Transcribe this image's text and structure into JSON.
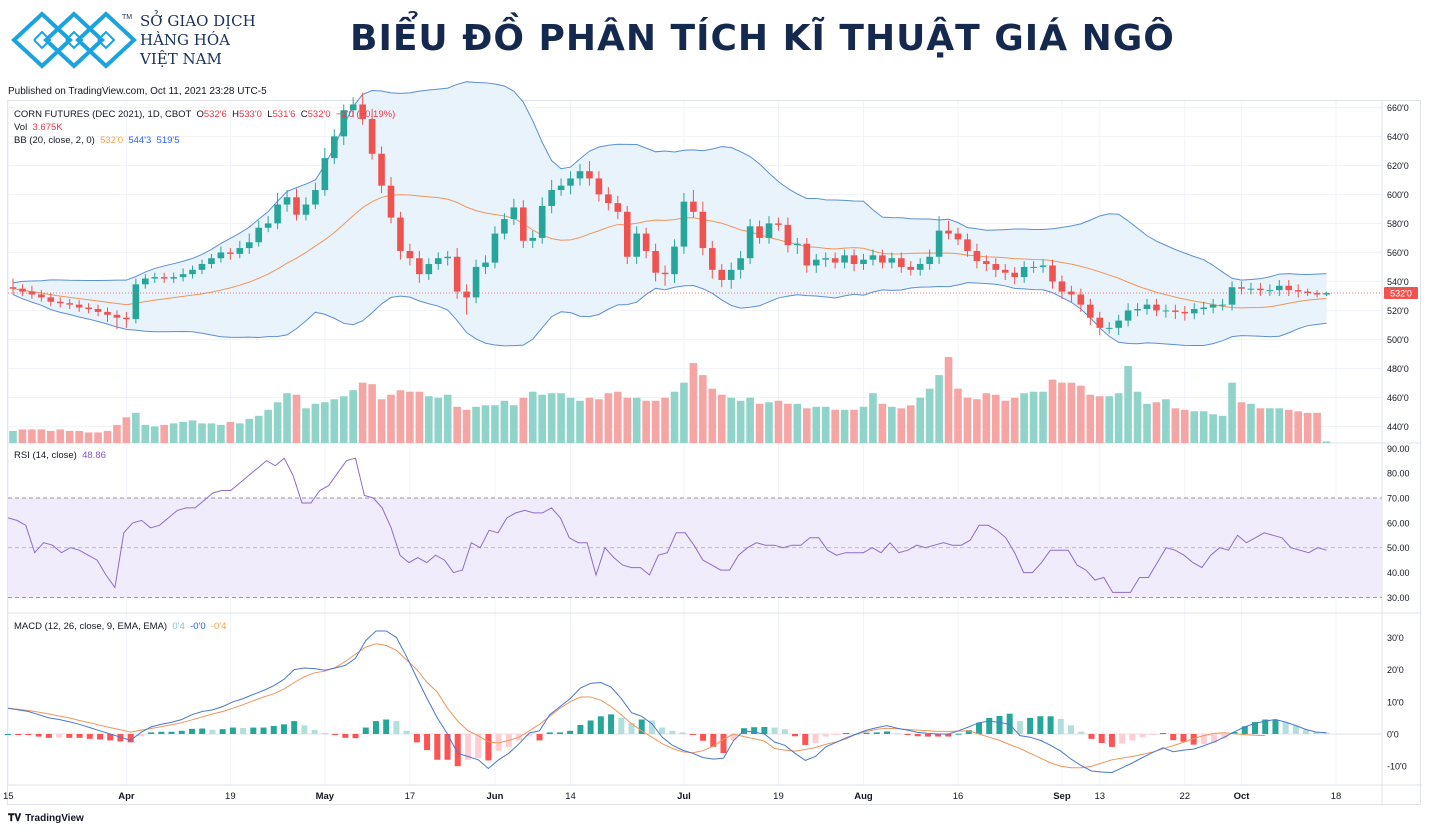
{
  "header": {
    "org_lines": [
      "SỞ GIAO DỊCH",
      "HÀNG HÓA",
      "VIỆT NAM"
    ],
    "tm": "TM",
    "title": "BIỂU ĐỒ PHÂN TÍCH KĨ THUẬT GIÁ NGÔ",
    "published": "Published on TradingView.com, Oct 11, 2021 23:28 UTC-5"
  },
  "legend": {
    "symbol": "CORN FUTURES (DEC 2021), 1D, CBOT",
    "o_label": "O",
    "o": "532'6",
    "h_label": "H",
    "h": "533'0",
    "l_label": "L",
    "l": "531'6",
    "c_label": "C",
    "c": "532'0",
    "change": "−1'0 (−0.19%)",
    "vol_label": "Vol",
    "vol": "3.675K",
    "bb_label": "BB (20, close, 2, 0)",
    "bb_basis": "532'0",
    "bb_upper": "544'3",
    "bb_lower": "519'5",
    "rsi_label": "RSI (14, close)",
    "rsi": "48.86",
    "macd_label": "MACD (12, 26, close, 9, EMA, EMA)",
    "macd_hist": "0'4",
    "macd_line": "-0'0",
    "macd_signal": "-0'4"
  },
  "footer": {
    "brand": "TradingView",
    "icon": "tradingview-logo-icon"
  },
  "colors": {
    "up": "#26a69a",
    "down": "#ef5350",
    "bb_band": "#5b8fd6",
    "bb_basis": "#f0955a",
    "bb_fill": "#e9f3fb",
    "rsi_line": "#8e6cc9",
    "rsi_fill": "#f1ecfb",
    "macd_line": "#4a78d1",
    "signal_line": "#f0955a",
    "vol_up": "#8fd3c9",
    "vol_down": "#f5a6a4"
  },
  "chart_data": {
    "type": "candlestick",
    "title": "CORN FUTURES (DEC 2021), 1D, CBOT",
    "price_axis_ticks": [
      "660'0",
      "640'0",
      "620'0",
      "600'0",
      "580'0",
      "560'0",
      "540'0",
      "520'0",
      "500'0",
      "480'0",
      "460'0",
      "440'0"
    ],
    "price_ylim": [
      430,
      663
    ],
    "last_price_label": "532'0",
    "last_price": 532,
    "rsi_axis_ticks": [
      "90.00",
      "80.00",
      "70.00",
      "60.00",
      "50.00",
      "40.00",
      "30.00"
    ],
    "rsi_levels": [
      70,
      50,
      30
    ],
    "macd_axis_ticks": [
      "30'0",
      "20'0",
      "10'0",
      "0'0",
      "-10'0"
    ],
    "time_axis_labels": [
      {
        "label": "15",
        "bar": -0.5
      },
      {
        "label": "Apr",
        "bar": 12
      },
      {
        "label": "19",
        "bar": 23
      },
      {
        "label": "May",
        "bar": 33
      },
      {
        "label": "17",
        "bar": 42
      },
      {
        "label": "Jun",
        "bar": 51
      },
      {
        "label": "14",
        "bar": 59
      },
      {
        "label": "Jul",
        "bar": 71
      },
      {
        "label": "19",
        "bar": 81
      },
      {
        "label": "Aug",
        "bar": 90
      },
      {
        "label": "16",
        "bar": 100
      },
      {
        "label": "Sep",
        "bar": 111
      },
      {
        "label": "13",
        "bar": 115
      },
      {
        "label": "22",
        "bar": 124
      },
      {
        "label": "Oct",
        "bar": 130
      },
      {
        "label": "18",
        "bar": 140
      }
    ],
    "close": [
      535,
      533,
      531,
      529,
      526,
      525,
      524,
      522,
      521,
      519,
      517,
      515,
      514,
      538,
      542,
      543,
      542,
      543,
      545,
      548,
      552,
      556,
      560,
      559,
      563,
      567,
      577,
      580,
      593,
      598,
      586,
      593,
      603,
      625,
      640,
      658,
      662,
      652,
      628,
      606,
      584,
      561,
      556,
      545,
      552,
      556,
      557,
      533,
      529,
      550,
      553,
      573,
      583,
      591,
      568,
      570,
      592,
      603,
      606,
      611,
      616,
      611,
      600,
      594,
      588,
      557,
      573,
      561,
      546,
      545,
      564,
      595,
      588,
      563,
      548,
      541,
      548,
      556,
      578,
      570,
      580,
      579,
      565,
      566,
      551,
      555,
      556,
      553,
      558,
      552,
      555,
      558,
      553,
      556,
      550,
      548,
      552,
      557,
      575,
      573,
      569,
      561,
      554,
      552,
      548,
      546,
      543,
      550,
      550,
      551,
      540,
      533,
      531,
      524,
      515,
      508,
      508,
      513,
      520,
      521,
      524,
      520,
      520,
      519,
      518,
      521,
      522,
      524,
      524,
      536,
      535,
      535,
      534,
      534,
      537,
      534,
      533,
      532,
      531,
      532
    ],
    "high_wick": [
      6,
      3,
      4,
      3,
      3,
      3,
      3,
      3,
      3,
      3,
      3,
      3,
      4,
      4,
      3,
      3,
      3,
      3,
      4,
      3,
      3,
      3,
      4,
      3,
      5,
      6,
      5,
      5,
      8,
      5,
      6,
      5,
      5,
      7,
      5,
      4,
      5,
      8,
      7,
      5,
      6,
      4,
      5,
      5,
      4,
      4,
      4,
      6,
      5,
      5,
      5,
      5,
      4,
      6,
      5,
      5,
      6,
      7,
      5,
      5,
      5,
      7,
      5,
      5,
      5,
      4,
      5,
      4,
      5,
      5,
      5,
      6,
      8,
      7,
      5,
      4,
      5,
      5,
      5,
      4,
      5,
      4,
      5,
      4,
      4,
      4,
      4,
      4,
      4,
      4,
      4,
      4,
      4,
      4,
      4,
      4,
      4,
      5,
      10,
      7,
      4,
      4,
      5,
      4,
      4,
      4,
      4,
      4,
      4,
      4,
      4,
      4,
      4,
      4,
      4,
      4,
      4,
      4,
      5,
      4,
      4,
      4,
      4,
      4,
      4,
      4,
      4,
      4,
      4,
      4,
      4,
      4,
      4,
      4,
      4,
      4,
      4,
      2,
      2,
      1
    ],
    "low_wick": [
      4,
      3,
      3,
      3,
      3,
      3,
      3,
      3,
      3,
      3,
      5,
      8,
      6,
      3,
      3,
      3,
      3,
      3,
      3,
      3,
      3,
      3,
      3,
      4,
      3,
      4,
      3,
      3,
      4,
      5,
      4,
      4,
      3,
      4,
      4,
      6,
      5,
      4,
      4,
      5,
      4,
      6,
      5,
      6,
      4,
      4,
      5,
      5,
      12,
      4,
      5,
      4,
      4,
      4,
      5,
      5,
      4,
      5,
      4,
      6,
      5,
      5,
      5,
      5,
      5,
      5,
      5,
      5,
      6,
      8,
      6,
      5,
      4,
      5,
      6,
      5,
      6,
      6,
      4,
      4,
      4,
      4,
      5,
      6,
      5,
      5,
      5,
      4,
      4,
      5,
      4,
      4,
      4,
      4,
      4,
      4,
      4,
      4,
      5,
      4,
      4,
      4,
      5,
      5,
      5,
      5,
      5,
      4,
      4,
      4,
      5,
      5,
      5,
      5,
      5,
      5,
      4,
      5,
      4,
      4,
      4,
      4,
      5,
      5,
      5,
      4,
      4,
      4,
      4,
      4,
      4,
      4,
      4,
      4,
      4,
      4,
      4,
      2,
      2,
      1
    ],
    "volume": [
      8,
      9,
      9,
      9,
      8,
      9,
      8,
      8,
      7,
      7,
      8,
      12,
      17,
      20,
      12,
      11,
      12,
      13,
      14,
      15,
      13,
      13,
      12,
      14,
      13,
      16,
      18,
      22,
      27,
      33,
      32,
      23,
      26,
      27,
      29,
      31,
      35,
      40,
      39,
      29,
      32,
      35,
      34,
      34,
      31,
      30,
      32,
      24,
      22,
      24,
      25,
      25,
      28,
      25,
      30,
      34,
      32,
      33,
      33,
      30,
      28,
      30,
      29,
      33,
      34,
      30,
      30,
      28,
      28,
      30,
      34,
      40,
      53,
      45,
      36,
      32,
      30,
      28,
      30,
      26,
      27,
      28,
      26,
      26,
      23,
      24,
      24,
      22,
      22,
      22,
      24,
      33,
      26,
      24,
      23,
      25,
      30,
      36,
      45,
      57,
      36,
      30,
      29,
      33,
      32,
      28,
      30,
      33,
      34,
      34,
      42,
      40,
      40,
      38,
      32,
      31,
      31,
      33,
      51,
      34,
      26,
      27,
      29,
      23,
      22,
      21,
      21,
      19,
      18,
      40,
      27,
      26,
      23,
      23,
      23,
      22,
      21,
      20,
      20,
      1
    ],
    "rsi": [
      62,
      61,
      59,
      48,
      52,
      51,
      48,
      50,
      49,
      47,
      45,
      39,
      34,
      56,
      60,
      61,
      58,
      59,
      62,
      65,
      66,
      66,
      69,
      72,
      73,
      73,
      76,
      79,
      82,
      85,
      83,
      86,
      79,
      68,
      68,
      73,
      75,
      80,
      85,
      86,
      71,
      70,
      66,
      58,
      47,
      44,
      46,
      44,
      47,
      45,
      40,
      41,
      52,
      50,
      57,
      56,
      62,
      64,
      65,
      64,
      64,
      66,
      62,
      54,
      52,
      52,
      39,
      50,
      46,
      43,
      42,
      42,
      39,
      47,
      48,
      56,
      56,
      51,
      45,
      43,
      41,
      41,
      47,
      50,
      52,
      51,
      51,
      50,
      51,
      51,
      54,
      54,
      49,
      47,
      48,
      48,
      48,
      50,
      48,
      52,
      48,
      49,
      51,
      50,
      51,
      52,
      51,
      51,
      53,
      59,
      59,
      57,
      54,
      48,
      40,
      40,
      44,
      49,
      49,
      49,
      43,
      41,
      37,
      38,
      32,
      32,
      32,
      38,
      38,
      44,
      50,
      49,
      47,
      44,
      42,
      47,
      50,
      49,
      55,
      52,
      54,
      56,
      55,
      54,
      50,
      49,
      48,
      50,
      49
    ],
    "macd": [
      8,
      7.5,
      7,
      6,
      5,
      4.5,
      3.8,
      3,
      2,
      1,
      0,
      -1,
      -2,
      0.5,
      2.2,
      3,
      3.6,
      4.5,
      6,
      7,
      7.5,
      8.5,
      10,
      11,
      12.3,
      13.5,
      15,
      17,
      20,
      20.5,
      20.3,
      19.8,
      20.5,
      21.3,
      23.5,
      29,
      32,
      32,
      30,
      24,
      17.4,
      11,
      5,
      0,
      -6,
      -7,
      -8,
      -10.7,
      -8,
      -6,
      -3,
      0.3,
      1,
      6,
      8.5,
      11,
      14.3,
      15.7,
      16,
      14.6,
      11,
      6.6,
      5.5,
      3.2,
      -1,
      -3.5,
      -5,
      -6,
      -7.3,
      -7.8,
      -7.5,
      -2,
      1,
      0.6,
      0,
      -2.5,
      -3.5,
      -6,
      -8.2,
      -7,
      -4,
      -2.6,
      -1.2,
      0,
      1.2,
      2,
      2.6,
      1.8,
      1.2,
      0.5,
      0.2,
      0,
      0,
      1,
      2.2,
      3.5,
      4,
      3.6,
      3,
      -0.5,
      -1,
      -2,
      -3.5,
      -5.3,
      -7.8,
      -9.8,
      -11.5,
      -11.8,
      -12,
      -10.5,
      -9,
      -7.3,
      -5.7,
      -4.3,
      -5.5,
      -5,
      -4.7,
      -3.6,
      -2.5,
      -1,
      0.7,
      2.2,
      3.3,
      4,
      4.5,
      3.7,
      2.6,
      1.4,
      0.6,
      0.4
    ],
    "macd_signal": [
      8,
      7.7,
      7.3,
      6.8,
      6.2,
      5.6,
      5,
      4.2,
      3.5,
      2.7,
      2,
      1.3,
      0.6,
      1.2,
      1.7,
      2.3,
      2.9,
      3.5,
      4.4,
      5.3,
      6.2,
      7,
      8,
      9.1,
      10.3,
      11.5,
      12.5,
      14,
      16,
      17.8,
      19,
      19.5,
      20.6,
      22.5,
      24.8,
      27,
      28,
      27.5,
      26,
      23,
      20,
      16,
      13,
      8,
      4,
      1,
      -0.5,
      -2.5,
      -2.8,
      -2,
      -1,
      1,
      3,
      5.5,
      8,
      10,
      11.5,
      11.5,
      10.5,
      8.5,
      6,
      3.2,
      1,
      -1,
      -3,
      -4.5,
      -5.5,
      -5.8,
      -5.2,
      -3.8,
      -1.6,
      0,
      -0.8,
      -1.5,
      -2.2,
      -4.5,
      -5,
      -5.3,
      -4.8,
      -4.2,
      -3.2,
      -2.5,
      -1.5,
      0,
      0.8,
      1.5,
      1.8,
      1.6,
      1.4,
      1.2,
      1,
      0.8,
      0.8,
      0.9,
      1,
      0,
      -1,
      -2,
      -3.3,
      -4.5,
      -6,
      -7.5,
      -9,
      -10,
      -10.5,
      -10.5,
      -10,
      -9,
      -8,
      -7.5,
      -7,
      -6.3,
      -5.6,
      -4.6,
      -3.6,
      -2.6,
      -1.4,
      -0.5,
      0.2,
      0.4,
      0.1,
      -0.2,
      -0.4,
      -0.5
    ]
  }
}
